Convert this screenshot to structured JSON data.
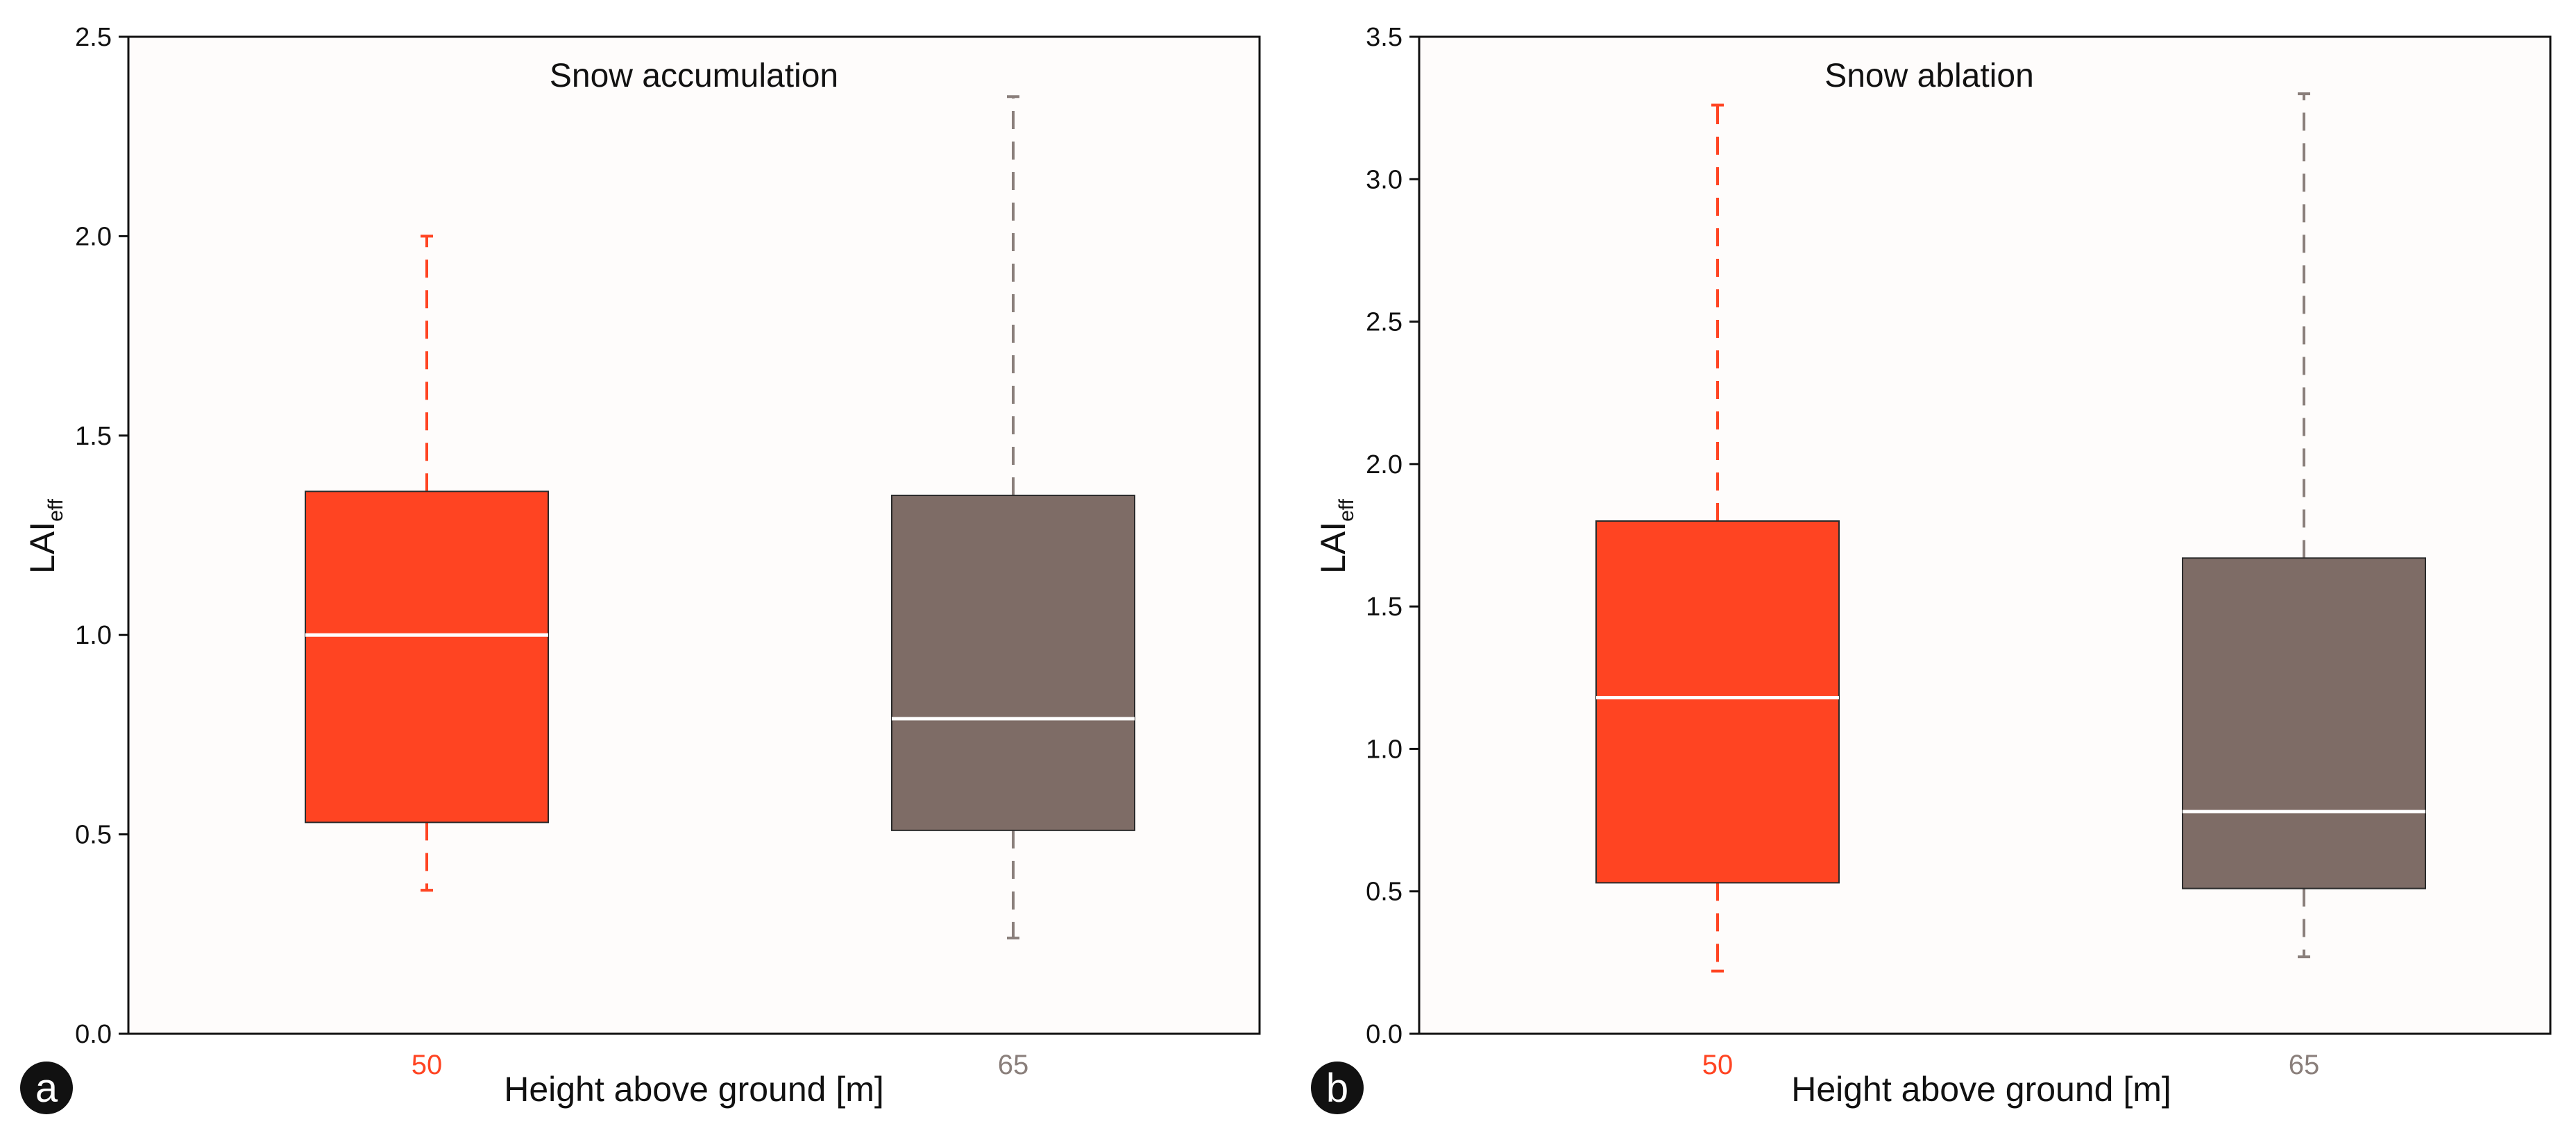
{
  "colors": {
    "plot_bg": "#fefcfb",
    "series_50": "#ff4422",
    "series_65": "#7e6c66",
    "whisker_65": "#8a7f7b",
    "median": "#ffffff",
    "badge": "#111111"
  },
  "chart_data": [
    {
      "type": "boxplot",
      "panel_letter": "a",
      "title": "Snow accumulation",
      "xlabel": "Height above ground [m]",
      "ylabel_main": "LAI",
      "ylabel_sub": "eff",
      "ylim": [
        0,
        2.5
      ],
      "yticks": [
        "0.0",
        "0.5",
        "1.0",
        "1.5",
        "2.0",
        "2.5"
      ],
      "categories": [
        "50",
        "65"
      ],
      "boxes": [
        {
          "category": "50",
          "min": 0.36,
          "q1": 0.53,
          "median": 1.0,
          "q3": 1.36,
          "max": 2.0
        },
        {
          "category": "65",
          "min": 0.24,
          "q1": 0.51,
          "median": 0.79,
          "q3": 1.35,
          "max": 2.35
        }
      ]
    },
    {
      "type": "boxplot",
      "panel_letter": "b",
      "title": "Snow ablation",
      "xlabel": "Height above ground [m]",
      "ylabel_main": "LAI",
      "ylabel_sub": "eff",
      "ylim": [
        0,
        3.5
      ],
      "yticks": [
        "0.0",
        "0.5",
        "1.0",
        "1.5",
        "2.0",
        "2.5",
        "3.0",
        "3.5"
      ],
      "categories": [
        "50",
        "65"
      ],
      "boxes": [
        {
          "category": "50",
          "min": 0.22,
          "q1": 0.53,
          "median": 1.18,
          "q3": 1.8,
          "max": 3.26
        },
        {
          "category": "65",
          "min": 0.27,
          "q1": 0.51,
          "median": 0.78,
          "q3": 1.67,
          "max": 3.3
        }
      ]
    }
  ]
}
